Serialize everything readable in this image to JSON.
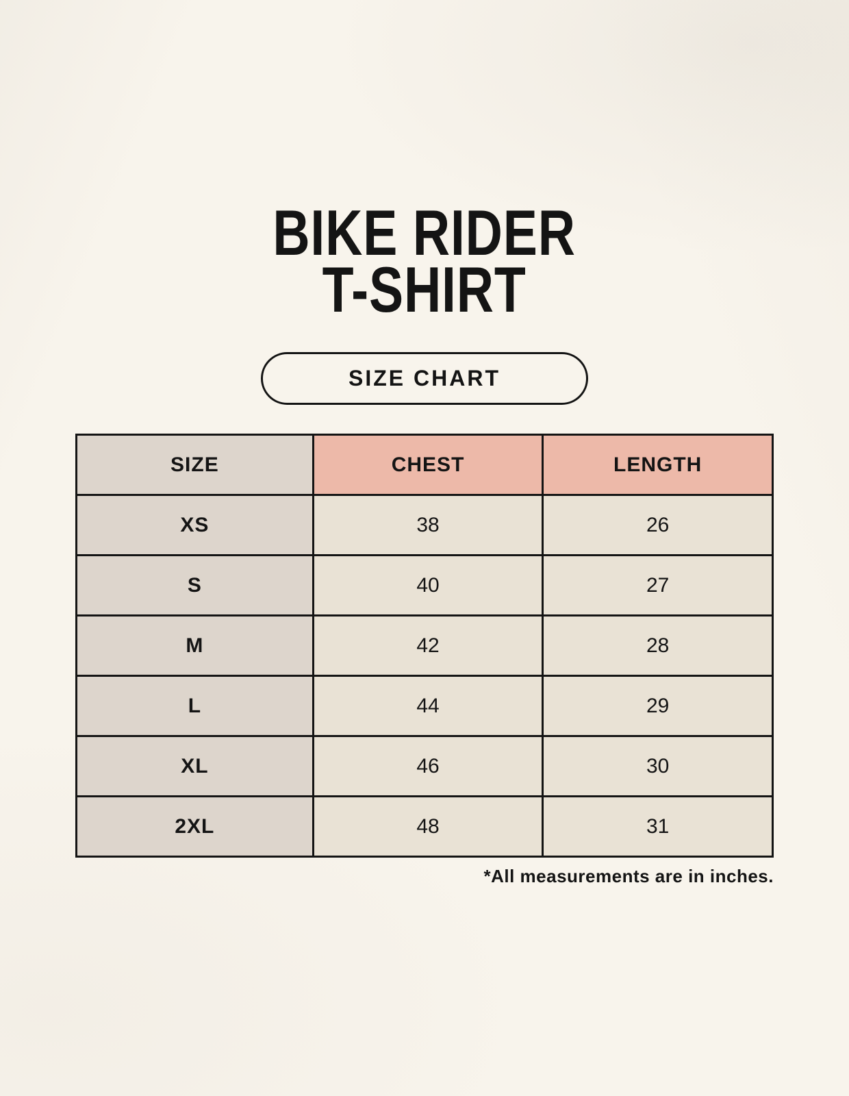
{
  "title": {
    "line1": "BIKE RIDER",
    "line2": "T-SHIRT"
  },
  "badge": {
    "label": "SIZE CHART"
  },
  "chart_data": {
    "type": "table",
    "title": "BIKE RIDER T-SHIRT — SIZE CHART",
    "columns": [
      "SIZE",
      "CHEST",
      "LENGTH"
    ],
    "rows": [
      {
        "size": "XS",
        "chest": "38",
        "length": "26"
      },
      {
        "size": "S",
        "chest": "40",
        "length": "27"
      },
      {
        "size": "M",
        "chest": "42",
        "length": "28"
      },
      {
        "size": "L",
        "chest": "44",
        "length": "29"
      },
      {
        "size": "XL",
        "chest": "46",
        "length": "30"
      },
      {
        "size": "2XL",
        "chest": "48",
        "length": "31"
      }
    ],
    "units": "inches"
  },
  "footnote": "*All measurements are in inches.",
  "colors": {
    "background": "#f8f4ec",
    "size_column_bg": "#ddd5cc",
    "accent_header_bg": "#edb9a9",
    "value_cell_bg": "#e9e2d5",
    "border": "#141414",
    "text": "#141414"
  }
}
